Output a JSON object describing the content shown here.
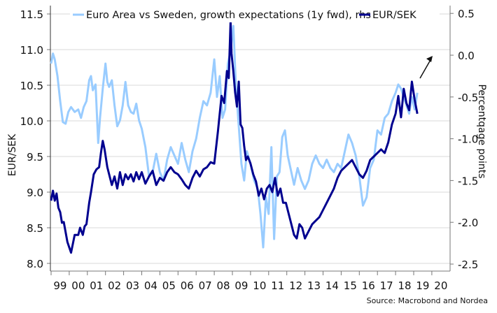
{
  "chart_data": {
    "type": "line",
    "title": "",
    "legend": [
      {
        "name": "Euro Area vs Sweden, growth expectations (1y fwd), rhs",
        "color": "#99ccff",
        "axis": "right"
      },
      {
        "name": "EUR/SEK",
        "color": "#00008f",
        "axis": "left"
      }
    ],
    "legend_position": "top",
    "xlabel": "",
    "ylabel": "EUR/SEK",
    "ylabel_right": "Percentqage points",
    "x_tick_labels": [
      "99",
      "00",
      "01",
      "02",
      "03",
      "04",
      "05",
      "06",
      "07",
      "08",
      "09",
      "10",
      "11",
      "12",
      "13",
      "14",
      "15",
      "16",
      "17",
      "18",
      "19",
      "20"
    ],
    "x_range": [
      1999.0,
      2020.9
    ],
    "ylim": [
      8.0,
      11.5
    ],
    "y_ticks": [
      "8.0",
      "8.5",
      "9.0",
      "9.5",
      "10.0",
      "10.5",
      "11.0",
      "11.5"
    ],
    "ylim_right": [
      -2.5,
      0.5
    ],
    "y_ticks_right": [
      "-2.5",
      "-2.0",
      "-1.5",
      "-1.0",
      "-0.5",
      "0.0",
      "0.5"
    ],
    "grid": true,
    "annotation": {
      "type": "arrow",
      "direction": "up-right",
      "near_x": 2019.5
    },
    "series": [
      {
        "name": "EUR/SEK",
        "axis": "left",
        "x": [
          1999.0,
          1999.1,
          1999.2,
          1999.3,
          1999.4,
          1999.5,
          1999.6,
          1999.7,
          1999.9,
          2000.1,
          2000.3,
          2000.5,
          2000.6,
          2000.75,
          2000.85,
          2000.95,
          2001.1,
          2001.2,
          2001.35,
          2001.5,
          2001.65,
          2001.75,
          2001.85,
          2001.95,
          2002.1,
          2002.25,
          2002.35,
          2002.5,
          2002.65,
          2002.8,
          2002.95,
          2003.1,
          2003.25,
          2003.4,
          2003.55,
          2003.7,
          2003.85,
          2004.0,
          2004.2,
          2004.4,
          2004.6,
          2004.8,
          2005.0,
          2005.2,
          2005.4,
          2005.6,
          2005.8,
          2006.0,
          2006.2,
          2006.4,
          2006.6,
          2006.8,
          2007.0,
          2007.2,
          2007.4,
          2007.6,
          2007.8,
          2008.0,
          2008.2,
          2008.4,
          2008.55,
          2008.7,
          2008.8,
          2008.9,
          2008.95,
          2009.05,
          2009.15,
          2009.25,
          2009.35,
          2009.45,
          2009.55,
          2009.65,
          2009.75,
          2009.85,
          2010.0,
          2010.15,
          2010.3,
          2010.45,
          2010.6,
          2010.75,
          2010.9,
          2011.05,
          2011.2,
          2011.35,
          2011.5,
          2011.65,
          2011.8,
          2011.95,
          2012.1,
          2012.25,
          2012.4,
          2012.55,
          2012.7,
          2012.85,
          2013.0,
          2013.2,
          2013.4,
          2013.6,
          2013.8,
          2014.0,
          2014.2,
          2014.4,
          2014.6,
          2014.8,
          2015.0,
          2015.2,
          2015.4,
          2015.6,
          2015.8,
          2016.0,
          2016.2,
          2016.4,
          2016.6,
          2016.8,
          2017.0,
          2017.2,
          2017.4,
          2017.6,
          2017.8,
          2018.0,
          2018.15,
          2018.3,
          2018.45,
          2018.6,
          2018.75,
          2018.9,
          2019.05,
          2019.2
        ],
        "values": [
          8.88,
          9.02,
          8.88,
          8.98,
          8.78,
          8.72,
          8.57,
          8.58,
          8.3,
          8.15,
          8.4,
          8.4,
          8.5,
          8.4,
          8.52,
          8.55,
          8.85,
          9.0,
          9.25,
          9.32,
          9.35,
          9.55,
          9.72,
          9.6,
          9.35,
          9.2,
          9.1,
          9.22,
          9.05,
          9.28,
          9.1,
          9.25,
          9.18,
          9.25,
          9.15,
          9.28,
          9.18,
          9.28,
          9.12,
          9.22,
          9.3,
          9.1,
          9.2,
          9.16,
          9.28,
          9.35,
          9.28,
          9.25,
          9.18,
          9.1,
          9.05,
          9.2,
          9.3,
          9.22,
          9.32,
          9.35,
          9.42,
          9.4,
          9.85,
          10.35,
          10.25,
          10.7,
          10.6,
          11.4,
          10.95,
          10.7,
          10.4,
          10.2,
          10.55,
          9.95,
          9.9,
          9.65,
          9.45,
          9.5,
          9.4,
          9.25,
          9.15,
          8.95,
          9.05,
          8.9,
          9.05,
          9.1,
          9.0,
          9.2,
          8.95,
          9.05,
          8.85,
          8.85,
          8.7,
          8.55,
          8.4,
          8.35,
          8.55,
          8.5,
          8.35,
          8.45,
          8.55,
          8.6,
          8.65,
          8.75,
          8.85,
          8.95,
          9.05,
          9.2,
          9.3,
          9.35,
          9.4,
          9.45,
          9.35,
          9.25,
          9.2,
          9.3,
          9.45,
          9.5,
          9.55,
          9.6,
          9.55,
          9.7,
          9.95,
          10.1,
          10.35,
          10.05,
          10.45,
          10.25,
          10.15,
          10.55,
          10.3,
          10.1
        ]
      },
      {
        "name": "Euro Area vs Sweden, growth expectations (1y fwd), rhs",
        "axis": "right",
        "x": [
          1999.0,
          1999.1,
          1999.2,
          1999.35,
          1999.5,
          1999.65,
          1999.8,
          1999.95,
          2000.1,
          2000.3,
          2000.5,
          2000.65,
          2000.8,
          2000.95,
          2001.1,
          2001.2,
          2001.3,
          2001.45,
          2001.6,
          2001.7,
          2001.85,
          2002.0,
          2002.1,
          2002.2,
          2002.35,
          2002.5,
          2002.65,
          2002.8,
          2002.95,
          2003.1,
          2003.25,
          2003.4,
          2003.55,
          2003.7,
          2003.85,
          2004.0,
          2004.2,
          2004.4,
          2004.6,
          2004.8,
          2005.0,
          2005.2,
          2005.4,
          2005.6,
          2005.8,
          2006.0,
          2006.2,
          2006.4,
          2006.6,
          2006.8,
          2007.0,
          2007.2,
          2007.4,
          2007.6,
          2007.8,
          2008.0,
          2008.15,
          2008.3,
          2008.45,
          2008.6,
          2008.75,
          2008.9,
          2009.05,
          2009.2,
          2009.35,
          2009.5,
          2009.65,
          2009.8,
          2010.0,
          2010.2,
          2010.4,
          2010.55,
          2010.7,
          2010.85,
          2011.0,
          2011.15,
          2011.3,
          2011.45,
          2011.6,
          2011.75,
          2011.9,
          2012.05,
          2012.2,
          2012.4,
          2012.6,
          2012.8,
          2013.0,
          2013.2,
          2013.4,
          2013.6,
          2013.8,
          2014.0,
          2014.2,
          2014.4,
          2014.6,
          2014.8,
          2015.0,
          2015.2,
          2015.4,
          2015.6,
          2015.8,
          2016.0,
          2016.2,
          2016.4,
          2016.6,
          2016.8,
          2017.0,
          2017.2,
          2017.4,
          2017.6,
          2017.8,
          2018.0,
          2018.15,
          2018.3,
          2018.45,
          2018.6,
          2018.75,
          2018.9,
          2019.05,
          2019.2
        ],
        "values": [
          -0.1,
          0.02,
          -0.05,
          -0.25,
          -0.55,
          -0.8,
          -0.82,
          -0.68,
          -0.62,
          -0.68,
          -0.65,
          -0.75,
          -0.62,
          -0.55,
          -0.3,
          -0.25,
          -0.42,
          -0.35,
          -1.05,
          -0.75,
          -0.4,
          -0.1,
          -0.32,
          -0.38,
          -0.3,
          -0.6,
          -0.85,
          -0.78,
          -0.6,
          -0.32,
          -0.6,
          -0.68,
          -0.7,
          -0.58,
          -0.78,
          -0.88,
          -1.1,
          -1.45,
          -1.4,
          -1.18,
          -1.4,
          -1.5,
          -1.25,
          -1.1,
          -1.2,
          -1.3,
          -1.05,
          -1.25,
          -1.4,
          -1.15,
          -1.0,
          -0.75,
          -0.55,
          -0.6,
          -0.45,
          -0.05,
          -0.5,
          -0.25,
          -0.75,
          -0.65,
          -0.1,
          0.05,
          0.35,
          -0.4,
          -0.85,
          -1.3,
          -1.5,
          -1.15,
          -1.3,
          -1.5,
          -1.6,
          -1.9,
          -2.3,
          -1.7,
          -1.9,
          -1.1,
          -2.2,
          -1.45,
          -1.4,
          -0.98,
          -0.9,
          -1.2,
          -1.35,
          -1.55,
          -1.35,
          -1.5,
          -1.6,
          -1.5,
          -1.3,
          -1.2,
          -1.3,
          -1.35,
          -1.25,
          -1.35,
          -1.4,
          -1.3,
          -1.35,
          -1.15,
          -0.95,
          -1.05,
          -1.2,
          -1.45,
          -1.8,
          -1.7,
          -1.35,
          -1.25,
          -0.9,
          -0.95,
          -0.75,
          -0.7,
          -0.55,
          -0.45,
          -0.35,
          -0.4,
          -0.5,
          -0.6,
          -0.7,
          -0.5,
          -0.65,
          -0.45
        ]
      }
    ]
  },
  "legend": {
    "item1": "Euro Area vs Sweden, growth expectations (1y fwd), rhs",
    "item2": "EUR/SEK"
  },
  "axes": {
    "left_title": "EUR/SEK",
    "right_title": "Percentqage points"
  },
  "source": "Source: Macrobond and Nordea"
}
